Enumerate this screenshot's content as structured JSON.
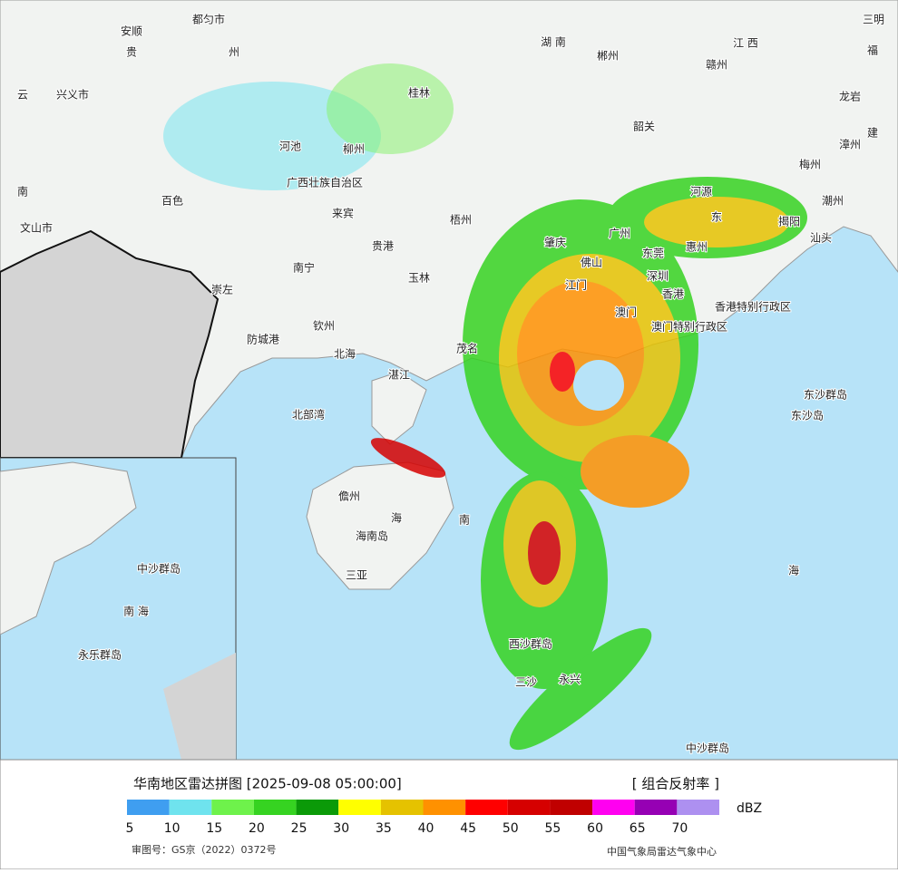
{
  "map": {
    "labels": [
      "都匀市",
      "安顺",
      "贵",
      "州",
      "云",
      "兴义市",
      "桂林",
      "河池",
      "柳州",
      "百色",
      "广西壮族自治区",
      "来宾",
      "南",
      "文山市",
      "贵港",
      "南宁",
      "崇左",
      "钦州",
      "防城港",
      "北海",
      "玉林",
      "梧州",
      "茂名",
      "湛江",
      "北部湾",
      "儋州",
      "海",
      "海南岛",
      "三亚",
      "南",
      "西沙群岛",
      "三沙",
      "永兴",
      "中沙群岛",
      "东沙群岛",
      "东沙岛",
      "海",
      "香港特别行政区",
      "澳门特别行政区",
      "广州",
      "东莞",
      "惠州",
      "深圳",
      "香港",
      "澳门",
      "江门",
      "佛山",
      "肇庆",
      "河源",
      "揭阳",
      "汕头",
      "韶关",
      "郴州",
      "赣州",
      "江 西",
      "湖 南",
      "三明",
      "福",
      "建",
      "龙岩",
      "漳州",
      "梅州",
      "潮州",
      "东",
      "南 海",
      "中沙群岛",
      "永乐群岛"
    ]
  },
  "legend": {
    "title": "华南地区雷达拼图 [2025-09-08 05:00:00]",
    "product": "[ 组合反射率 ]",
    "unit": "dBZ",
    "ticks": [
      5,
      10,
      15,
      20,
      25,
      30,
      35,
      40,
      45,
      50,
      55,
      60,
      65,
      70
    ],
    "colors": [
      "#3f9ef0",
      "#6fe3ee",
      "#6ef24b",
      "#36d321",
      "#0b9a08",
      "#ffff00",
      "#e5c200",
      "#ff9100",
      "#ff0000",
      "#d60000",
      "#c00000",
      "#ff00f0",
      "#9600b4",
      "#ad90f0"
    ],
    "approval": "审图号：GS京（2022）0372号",
    "source": "中国气象局雷达气象中心"
  }
}
